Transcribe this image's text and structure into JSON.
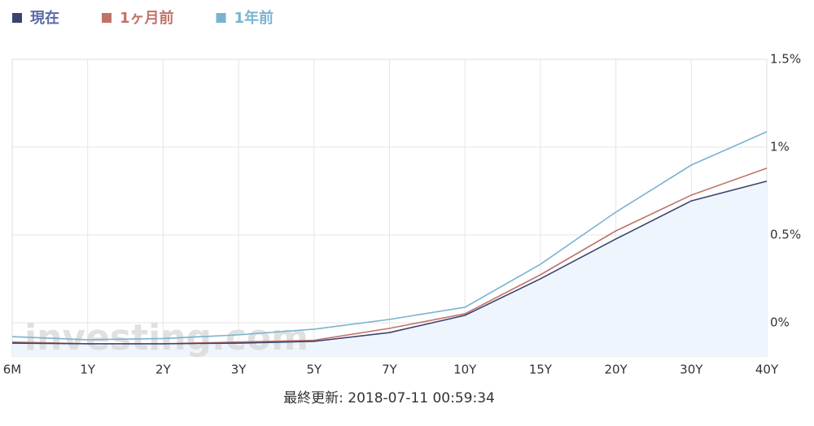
{
  "chart_data": {
    "type": "line",
    "categories": [
      "6M",
      "1Y",
      "2Y",
      "3Y",
      "5Y",
      "7Y",
      "10Y",
      "15Y",
      "20Y",
      "30Y",
      "40Y"
    ],
    "series": [
      {
        "name": "現在",
        "color": "#3b4370",
        "values": [
          -0.116,
          -0.12,
          -0.12,
          -0.116,
          -0.106,
          -0.056,
          0.042,
          0.25,
          0.477,
          0.694,
          0.806
        ]
      },
      {
        "name": "1ヶ月前",
        "color": "#c0736a",
        "values": [
          -0.11,
          -0.12,
          -0.12,
          -0.11,
          -0.1,
          -0.032,
          0.051,
          0.273,
          0.523,
          0.727,
          0.88
        ]
      },
      {
        "name": "1年前",
        "color": "#7ab3d0",
        "values": [
          -0.079,
          -0.097,
          -0.09,
          -0.069,
          -0.037,
          0.019,
          0.088,
          0.333,
          0.63,
          0.898,
          1.088
        ]
      }
    ],
    "area_color": "#eef5fc",
    "ylim": [
      -0.19,
      1.5
    ],
    "yticks": [
      {
        "value": 0,
        "label": "0%"
      },
      {
        "value": 0.5,
        "label": "0.5%"
      },
      {
        "value": 1,
        "label": "1%"
      },
      {
        "value": 1.5,
        "label": "1.5%"
      }
    ],
    "grid": true,
    "watermark": "investing.com",
    "footer": "最終更新: 2018-07-11 00:59:34"
  }
}
